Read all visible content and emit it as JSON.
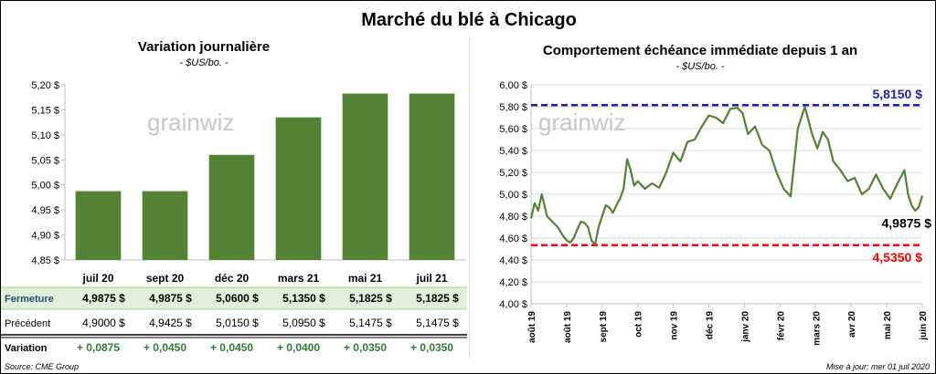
{
  "title": "Marché du blé à Chicago",
  "source": "Source: CME Group",
  "updated": "Mise à jour: mer 01 juil 2020",
  "watermark": "grainwiz",
  "colors": {
    "bar": "#548235",
    "line": "#548235",
    "high": "#1f1fb0",
    "low": "#ff0000",
    "current": "#000000",
    "row_highlight": "#e2efda",
    "variation_text": "#2e7d32"
  },
  "chart_data": [
    {
      "type": "bar",
      "title": "Variation journalière",
      "subtitle": "- $US/bo. -",
      "categories": [
        "juil 20",
        "sept 20",
        "déc 20",
        "mars 21",
        "mai 21",
        "juil 21"
      ],
      "values": [
        4.9875,
        4.9875,
        5.06,
        5.135,
        5.1825,
        5.1825
      ],
      "ylim": [
        4.85,
        5.2
      ],
      "yticks": [
        "4,85 $",
        "4,90 $",
        "4,95 $",
        "5,00 $",
        "5,05 $",
        "5,10 $",
        "5,15 $",
        "5,20 $"
      ],
      "grid": false,
      "table": {
        "rows": [
          {
            "label": "Fermeture",
            "values": [
              "4,9875  $",
              "4,9875  $",
              "5,0600  $",
              "5,1350  $",
              "5,1825  $",
              "5,1825  $"
            ]
          },
          {
            "label": "Précédent",
            "values": [
              "4,9000  $",
              "4,9425  $",
              "5,0150  $",
              "5,0950  $",
              "5,1475  $",
              "5,1475  $"
            ]
          },
          {
            "label": "Variation",
            "values": [
              "+ 0,0875",
              "+ 0,0450",
              "+ 0,0450",
              "+ 0,0400",
              "+ 0,0350",
              "+ 0,0350"
            ]
          }
        ]
      }
    },
    {
      "type": "line",
      "title": "Comportement  échéance immédiate depuis 1 an",
      "subtitle": "- $US/bo. -",
      "ylim": [
        4.0,
        6.0
      ],
      "yticks": [
        "4,00 $",
        "4,20 $",
        "4,40 $",
        "4,60 $",
        "4,80 $",
        "5,00 $",
        "5,20 $",
        "5,40 $",
        "5,60 $",
        "5,80 $",
        "6,00 $"
      ],
      "x_labels": [
        "août 19",
        "août 19",
        "sept 19",
        "oct 19",
        "nov 19",
        "déc 19",
        "janv 20",
        "févr 20",
        "mars 20",
        "avr 20",
        "mai 20",
        "juin 20"
      ],
      "x_range": [
        0,
        11
      ],
      "series": [
        {
          "x": [
            0,
            0.1,
            0.2,
            0.3,
            0.45,
            0.6,
            0.75,
            0.9,
            1.0,
            1.1,
            1.2,
            1.3,
            1.4,
            1.5,
            1.6,
            1.7,
            1.8,
            1.9,
            2.0,
            2.1,
            2.2,
            2.3,
            2.4,
            2.5,
            2.6,
            2.7,
            2.8,
            2.9,
            3.0,
            3.2,
            3.4,
            3.6,
            3.8,
            4.0,
            4.2,
            4.4,
            4.6,
            4.8,
            5.0,
            5.2,
            5.4,
            5.6,
            5.8,
            5.95,
            6.1,
            6.3,
            6.5,
            6.7,
            6.9,
            7.1,
            7.3,
            7.5,
            7.7,
            7.9,
            8.05,
            8.2,
            8.35,
            8.5,
            8.7,
            8.9,
            9.1,
            9.3,
            9.5,
            9.7,
            9.9,
            10.1,
            10.3,
            10.5,
            10.6,
            10.7,
            10.8,
            10.9,
            11.0
          ],
          "values": [
            4.78,
            4.92,
            4.85,
            5.0,
            4.8,
            4.75,
            4.7,
            4.62,
            4.58,
            4.56,
            4.6,
            4.68,
            4.75,
            4.74,
            4.7,
            4.58,
            4.54,
            4.7,
            4.8,
            4.9,
            4.88,
            4.83,
            4.9,
            4.96,
            5.05,
            5.32,
            5.22,
            5.08,
            5.12,
            5.05,
            5.1,
            5.06,
            5.2,
            5.38,
            5.3,
            5.48,
            5.5,
            5.62,
            5.72,
            5.7,
            5.65,
            5.78,
            5.79,
            5.74,
            5.55,
            5.62,
            5.45,
            5.4,
            5.2,
            5.05,
            4.98,
            5.6,
            5.8,
            5.55,
            5.42,
            5.57,
            5.5,
            5.3,
            5.22,
            5.12,
            5.15,
            5.0,
            5.05,
            5.18,
            5.05,
            4.96,
            5.1,
            5.22,
            5.0,
            4.9,
            4.85,
            4.88,
            4.9875
          ]
        }
      ],
      "annotations": {
        "high": {
          "value": 5.815,
          "label": "5,8150 $"
        },
        "low": {
          "value": 4.535,
          "label": "4,5350 $"
        },
        "current": {
          "value": 4.9875,
          "label": "4,9875 $"
        }
      },
      "grid": true
    }
  ]
}
